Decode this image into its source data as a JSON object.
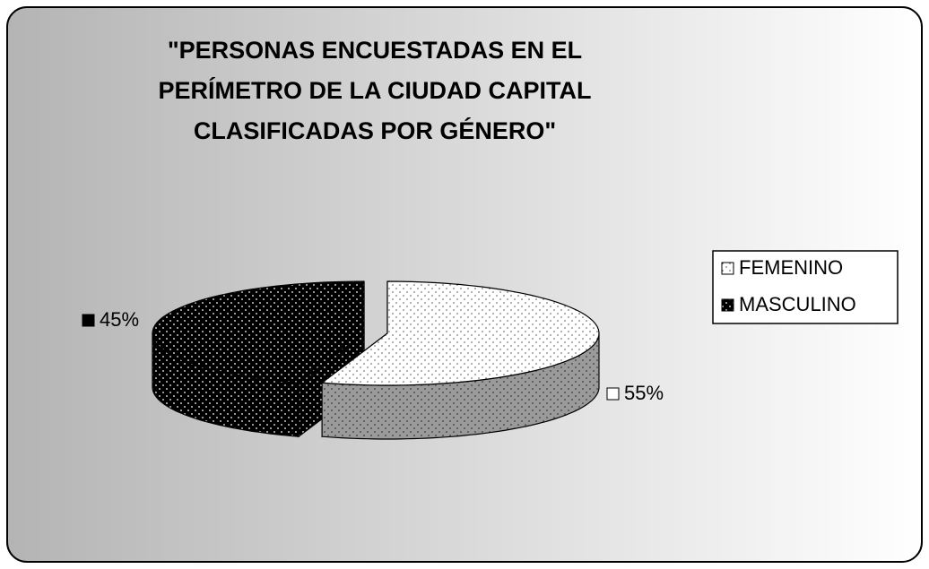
{
  "chart_data": {
    "type": "pie",
    "title": "\"PERSONAS ENCUESTADAS EN EL\nPERÍMETRO DE LA CIUDAD CAPITAL\nCLASIFICADAS POR GÉNERO\"",
    "categories": [
      "FEMENINO",
      "MASCULINO"
    ],
    "values": [
      55,
      45
    ],
    "value_labels": [
      "55%",
      "45%"
    ],
    "colors": [
      "#ffffff",
      "#000000"
    ],
    "legend": "right"
  }
}
